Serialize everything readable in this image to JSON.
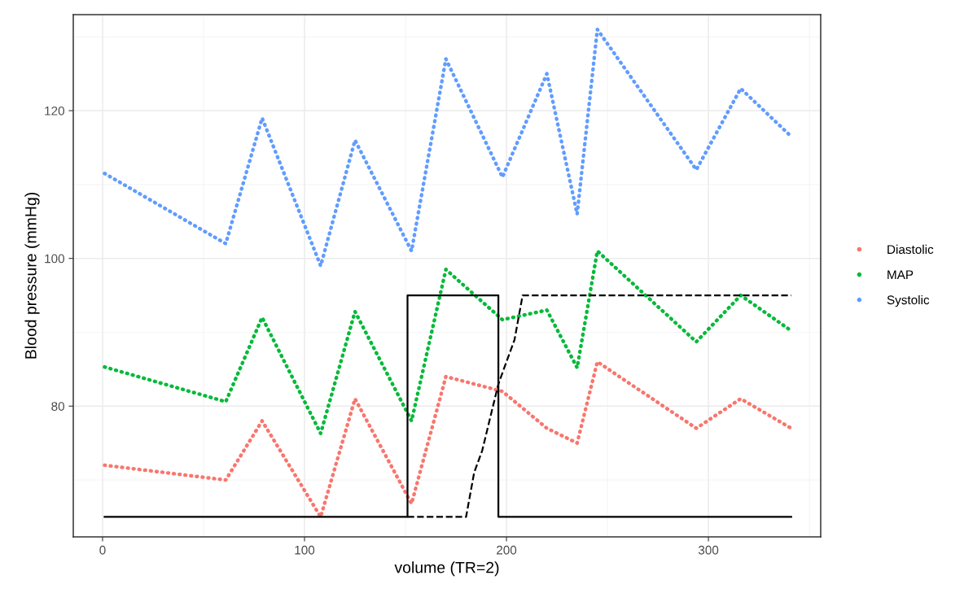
{
  "chart_data": {
    "type": "line",
    "xlabel": "volume (TR=2)",
    "ylabel": "Blood pressure (mmHg)",
    "xlim": [
      -14.5,
      355.6
    ],
    "ylim": [
      62.3,
      133
    ],
    "xticks": [
      0,
      100,
      200,
      300
    ],
    "yticks": [
      80,
      100,
      120
    ],
    "grid": true,
    "legend": "right",
    "line_style": "dotted",
    "marker": "none",
    "series": [
      {
        "name": "Diastolic",
        "color": "#f8766d",
        "x": [
          1,
          61,
          79,
          108,
          125,
          153,
          170,
          198,
          220,
          235,
          245,
          294,
          316,
          341
        ],
        "values": [
          72,
          70,
          78,
          65,
          81,
          66.8,
          84,
          82,
          77,
          75,
          86,
          77,
          81,
          77
        ]
      },
      {
        "name": "MAP",
        "color": "#00ba38",
        "x": [
          1,
          61,
          79,
          108,
          125,
          153,
          170,
          198,
          220,
          235,
          245,
          294,
          316,
          341
        ],
        "values": [
          85.3,
          80.6,
          92,
          76.3,
          92.8,
          78,
          98.5,
          91.7,
          93,
          85.2,
          101,
          88.7,
          95,
          90.2
        ]
      },
      {
        "name": "Systolic",
        "color": "#619cff",
        "x": [
          1,
          61,
          79,
          108,
          125,
          153,
          170,
          198,
          220,
          235,
          245,
          294,
          316,
          341
        ],
        "values": [
          111.5,
          102,
          119,
          99,
          116,
          101,
          127,
          111,
          125,
          106,
          131,
          112,
          123,
          116.5
        ]
      },
      {
        "color": "#000000",
        "line_style": "solid",
        "x": [
          1,
          151,
          151,
          196,
          196,
          341
        ],
        "values": [
          65,
          65,
          95,
          95,
          65,
          65
        ]
      },
      {
        "color": "#000000",
        "line_style": "dashed",
        "x": [
          151,
          180,
          184,
          188,
          196,
          200,
          204,
          208,
          341
        ],
        "values": [
          65,
          65,
          71,
          74,
          83,
          86,
          89,
          95,
          95
        ]
      }
    ]
  }
}
